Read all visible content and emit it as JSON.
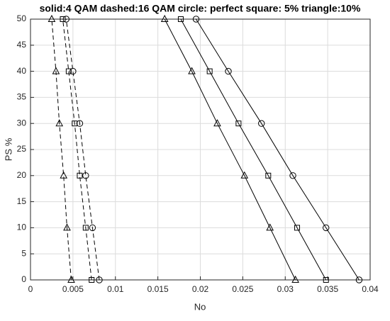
{
  "chart_data": {
    "type": "line",
    "title": "solid:4 QAM dashed:16 QAM circle: perfect  square: 5% triangle:10%",
    "x_label": "No",
    "y_label": "PS %",
    "color": "#000000",
    "grid": true,
    "xlim": [
      0,
      0.04
    ],
    "xticks": [
      0,
      0.005,
      0.01,
      0.015,
      0.02,
      0.025,
      0.03,
      0.035,
      0.04
    ],
    "ylim": [
      0,
      50
    ],
    "yticks": [
      0,
      5,
      10,
      15,
      20,
      25,
      30,
      35,
      40,
      45,
      50
    ],
    "series": [
      {
        "marker": "circle",
        "dashed": false,
        "x": [
          0.0387,
          0.0348,
          0.0309,
          0.0272,
          0.0233,
          0.0195
        ],
        "values": [
          0,
          10,
          20,
          30,
          40,
          50
        ]
      },
      {
        "marker": "square",
        "dashed": false,
        "x": [
          0.0348,
          0.0314,
          0.028,
          0.0245,
          0.0211,
          0.0177
        ],
        "values": [
          0,
          10,
          20,
          30,
          40,
          50
        ]
      },
      {
        "marker": "triangle",
        "dashed": false,
        "x": [
          0.0312,
          0.0282,
          0.0252,
          0.022,
          0.019,
          0.0158
        ],
        "values": [
          0,
          10,
          20,
          30,
          40,
          50
        ]
      },
      {
        "marker": "circle",
        "dashed": true,
        "x": [
          0.0081,
          0.0073,
          0.0065,
          0.0058,
          0.005,
          0.0042
        ],
        "values": [
          0,
          10,
          20,
          30,
          40,
          50
        ]
      },
      {
        "marker": "square",
        "dashed": true,
        "x": [
          0.0072,
          0.0065,
          0.0058,
          0.0052,
          0.0045,
          0.0038
        ],
        "values": [
          0,
          10,
          20,
          30,
          40,
          50
        ]
      },
      {
        "marker": "triangle",
        "dashed": true,
        "x": [
          0.0048,
          0.0043,
          0.0039,
          0.0034,
          0.003,
          0.0025
        ],
        "values": [
          0,
          10,
          20,
          30,
          40,
          50
        ]
      }
    ]
  }
}
